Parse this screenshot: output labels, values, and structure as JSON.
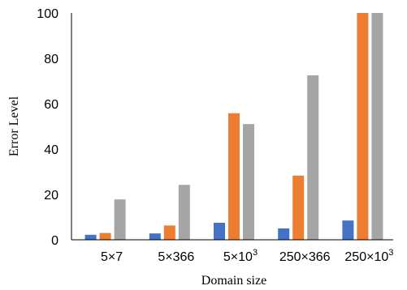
{
  "chart_data": {
    "type": "bar",
    "categories": [
      "5×7",
      "5×366",
      "5×10³",
      "250×366",
      "250×10³"
    ],
    "category_parts": [
      {
        "base": "5×7",
        "sup": ""
      },
      {
        "base": "5×366",
        "sup": ""
      },
      {
        "base": "5×10",
        "sup": "3"
      },
      {
        "base": "250×366",
        "sup": ""
      },
      {
        "base": "250×10",
        "sup": "3"
      }
    ],
    "series": [
      {
        "values": [
          2.2,
          2.8,
          7.5,
          5.0,
          8.5
        ],
        "color": "#4472C4"
      },
      {
        "values": [
          3.0,
          6.3,
          55.8,
          28.3,
          100
        ],
        "color": "#ED7D31"
      },
      {
        "values": [
          17.8,
          24.2,
          51.0,
          72.5,
          100
        ],
        "color": "#A5A5A5"
      }
    ],
    "xlabel": "Domain size",
    "ylabel": "Error Level",
    "ylim": [
      0,
      100
    ],
    "yticks": [
      0,
      20,
      40,
      60,
      80,
      100
    ],
    "grid": false,
    "legend": "none"
  }
}
